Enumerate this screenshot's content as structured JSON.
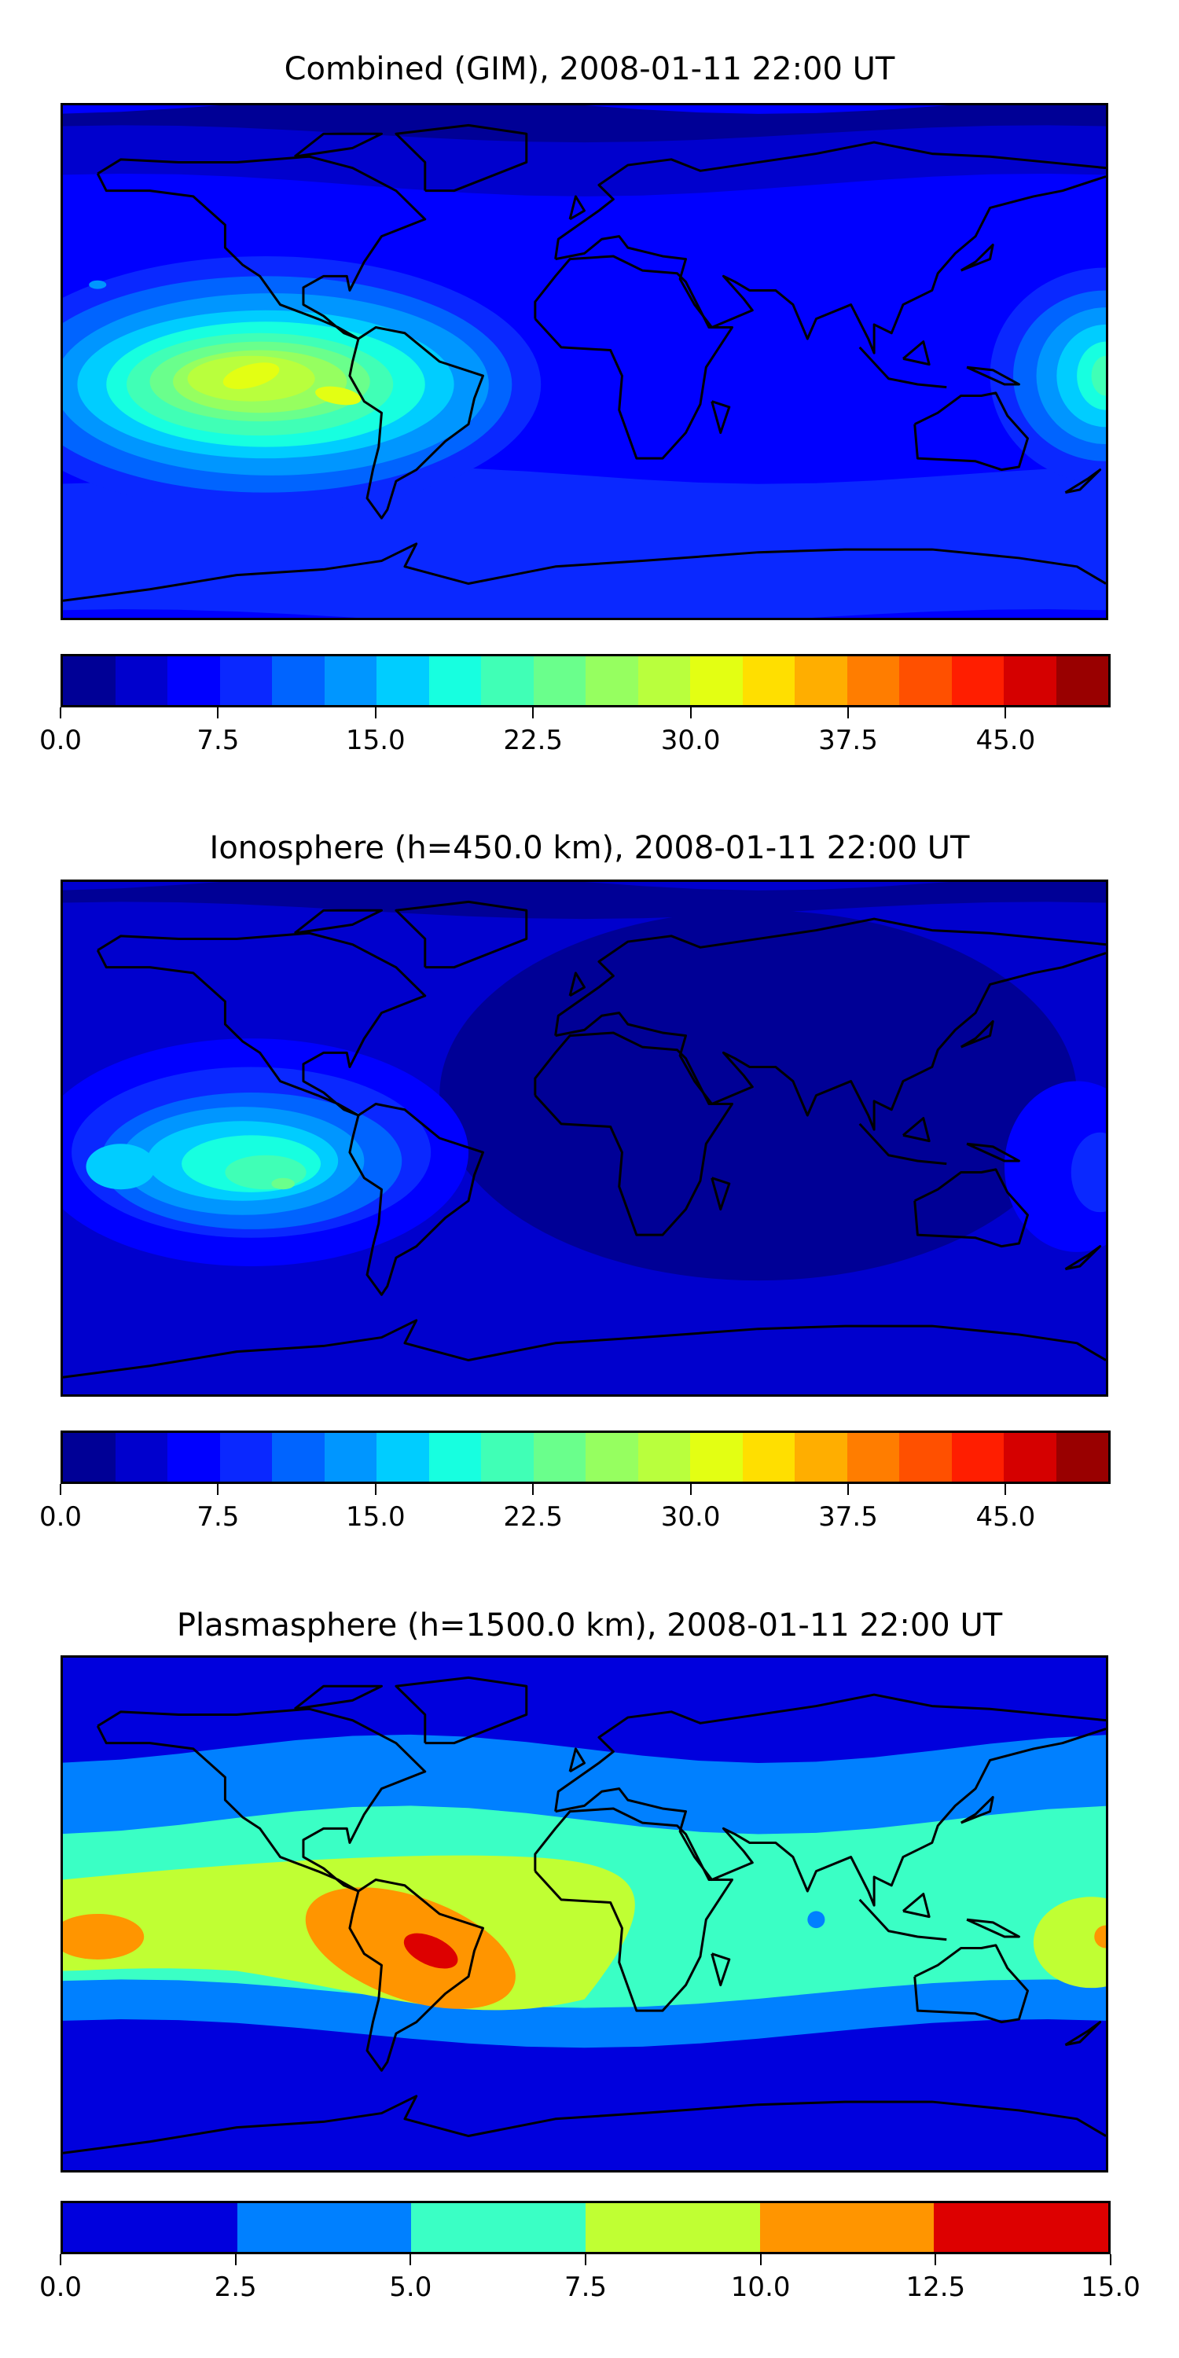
{
  "chart_data": [
    {
      "type": "heatmap",
      "title": "Combined (GIM), 2008-01-11 22:00 UT",
      "projection": "plate-carree world map with coastlines",
      "colorbar": {
        "range": [
          0,
          50
        ],
        "step": 2.5,
        "ticks": [
          "0.0",
          "7.5",
          "15.0",
          "22.5",
          "30.0",
          "37.5",
          "45.0"
        ],
        "tick_values": [
          0,
          7.5,
          15,
          22.5,
          30,
          37.5,
          45
        ],
        "colors": [
          "#000096",
          "#0000cd",
          "#0000ff",
          "#0a28ff",
          "#0064ff",
          "#0096ff",
          "#00cdff",
          "#17ffe0",
          "#40ffb6",
          "#6aff8c",
          "#96ff60",
          "#b9ff3d",
          "#e3ff13",
          "#ffdf00",
          "#ffae00",
          "#ff7d00",
          "#ff5000",
          "#ff1e00",
          "#d50000",
          "#990000"
        ]
      },
      "field_summary": {
        "background_level": 5.0,
        "max_level": 30.0,
        "max_location": "eastern Pacific, ~105W 10S",
        "secondary_max": "western Pacific near 180E, ~20"
      }
    },
    {
      "type": "heatmap",
      "title": "Ionosphere  (h=450.0 km), 2008-01-11 22:00 UT",
      "projection": "plate-carree world map with coastlines",
      "colorbar": {
        "range": [
          0,
          50
        ],
        "step": 2.5,
        "ticks": [
          "0.0",
          "7.5",
          "15.0",
          "22.5",
          "30.0",
          "37.5",
          "45.0"
        ],
        "tick_values": [
          0,
          7.5,
          15,
          22.5,
          30,
          37.5,
          45
        ],
        "colors": [
          "#000096",
          "#0000cd",
          "#0000ff",
          "#0a28ff",
          "#0064ff",
          "#0096ff",
          "#00cdff",
          "#17ffe0",
          "#40ffb6",
          "#6aff8c",
          "#96ff60",
          "#b9ff3d",
          "#e3ff13",
          "#ffdf00",
          "#ffae00",
          "#ff7d00",
          "#ff5000",
          "#ff1e00",
          "#d50000",
          "#990000"
        ]
      },
      "field_summary": {
        "background_level": 0.0,
        "max_level": 22.5,
        "max_location": "eastern Pacific, ~100W 15S"
      }
    },
    {
      "type": "heatmap",
      "title": "Plasmasphere (h=1500.0 km), 2008-01-11 22:00 UT",
      "projection": "plate-carree world map with coastlines",
      "colorbar": {
        "range": [
          0,
          15
        ],
        "step": 2.5,
        "ticks": [
          "0.0",
          "2.5",
          "5.0",
          "7.5",
          "10.0",
          "12.5",
          "15.0"
        ],
        "tick_values": [
          0,
          2.5,
          5,
          7.5,
          10,
          12.5,
          15
        ],
        "colors": [
          "#0000dd",
          "#0080ff",
          "#3affc5",
          "#c0ff33",
          "#ff9500",
          "#dd0000"
        ]
      },
      "field_summary": {
        "background_level": 0.0,
        "max_level": 12.5,
        "max_location": "South America, ~55W 15S"
      }
    }
  ]
}
